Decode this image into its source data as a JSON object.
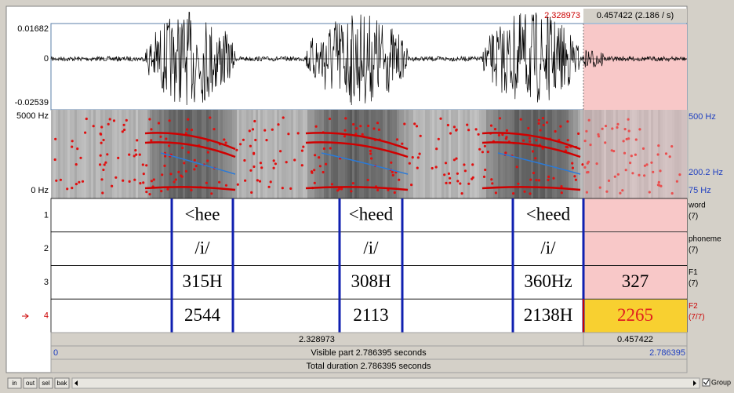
{
  "header": {
    "cursor_time": "2.328973",
    "selection": "0.457422 (2.186 / s)"
  },
  "waveform": {
    "max": "0.01682",
    "zero": "0",
    "min": "-0.02539"
  },
  "spectrogram": {
    "top": "5000 Hz",
    "bottom": "0 Hz",
    "right_labels": [
      "500 Hz",
      "200.2 Hz",
      "75 Hz"
    ]
  },
  "tiers": [
    {
      "number": "1",
      "name": "word",
      "count": "(7)",
      "intervals": [
        "<hee",
        "<heed",
        "<heed"
      ]
    },
    {
      "number": "2",
      "name": "phoneme",
      "count": "(7)",
      "intervals": [
        "/i/",
        "/i/",
        "/i/"
      ]
    },
    {
      "number": "3",
      "name": "F1",
      "count": "(7)",
      "intervals": [
        "315H",
        "308H",
        "360Hz",
        "327"
      ]
    },
    {
      "number": "4",
      "name": "F2",
      "count": "(7/7)",
      "intervals": [
        "2544",
        "2113",
        "2138H",
        "2265"
      ]
    }
  ],
  "footer": {
    "selection_start": "2.328973",
    "selection_length": "0.457422",
    "window_start": "0",
    "visible": "Visible part 2.786395 seconds",
    "window_end": "2.786395",
    "total": "Total duration 2.786395 seconds"
  },
  "buttons": [
    "in",
    "out",
    "sel",
    "bak"
  ],
  "group": "Group"
}
